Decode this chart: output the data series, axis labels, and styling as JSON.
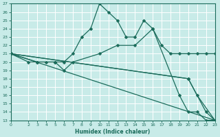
{
  "xlabel": "Humidex (Indice chaleur)",
  "background_color": "#c8ebe8",
  "grid_color": "#ffffff",
  "line_color": "#1a6b5a",
  "xlim": [
    0,
    23
  ],
  "ylim": [
    13,
    27
  ],
  "xticks": [
    0,
    2,
    3,
    4,
    5,
    6,
    7,
    8,
    9,
    10,
    11,
    12,
    13,
    14,
    15,
    16,
    17,
    18,
    19,
    20,
    21,
    22,
    23
  ],
  "yticks": [
    13,
    14,
    15,
    16,
    17,
    18,
    19,
    20,
    21,
    22,
    23,
    24,
    25,
    26,
    27
  ],
  "lines": [
    {
      "x": [
        0,
        2,
        3,
        4,
        5,
        6,
        7,
        8,
        9,
        10,
        11,
        12,
        13,
        14,
        15,
        16,
        17,
        18,
        19,
        20,
        21,
        22,
        23
      ],
      "y": [
        21,
        20,
        20,
        20,
        20,
        20,
        21,
        23,
        24,
        27,
        26,
        25,
        23,
        23,
        25,
        24,
        22,
        21,
        21,
        21,
        21,
        21,
        21
      ],
      "has_markers": true
    },
    {
      "x": [
        0,
        3,
        5,
        6,
        7,
        10,
        12,
        14,
        16,
        19,
        20,
        21,
        22,
        23
      ],
      "y": [
        21,
        20,
        20,
        19,
        20,
        21,
        22,
        22,
        24,
        16,
        14,
        14,
        13,
        13
      ],
      "has_markers": true
    },
    {
      "x": [
        0,
        23
      ],
      "y": [
        21,
        13
      ],
      "has_markers": false
    },
    {
      "x": [
        0,
        20,
        21,
        23
      ],
      "y": [
        21,
        18,
        16,
        13
      ],
      "has_markers": true
    },
    {
      "x": [
        0,
        20,
        22,
        23
      ],
      "y": [
        21,
        18,
        14,
        13
      ],
      "has_markers": true
    }
  ],
  "markersize": 2.5
}
